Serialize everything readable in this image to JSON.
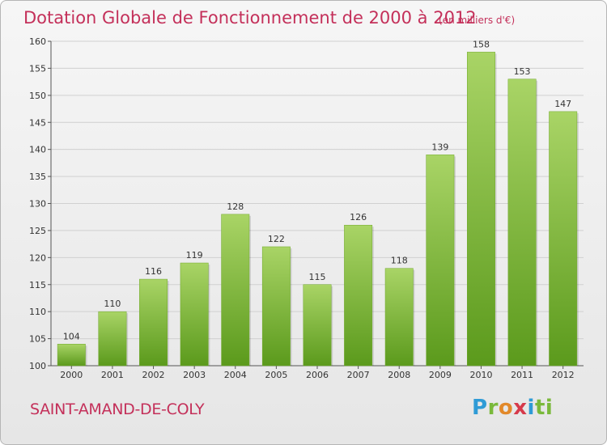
{
  "title": "Dotation Globale de Fonctionnement de 2000 à 2012",
  "unit_note": "(en milliers d'€)",
  "commune": "SAINT-AMAND-DE-COLY",
  "logo": "Proxiti",
  "colors": {
    "title": "#c4305a",
    "bar_top": "#a9d466",
    "bar_bottom": "#5b9a1c",
    "grid": "#d0d0d0"
  },
  "chart_data": {
    "type": "bar",
    "title": "Dotation Globale de Fonctionnement de 2000 à 2012",
    "xlabel": "",
    "ylabel": "",
    "categories": [
      "2000",
      "2001",
      "2002",
      "2003",
      "2004",
      "2005",
      "2006",
      "2007",
      "2008",
      "2009",
      "2010",
      "2011",
      "2012"
    ],
    "values": [
      104,
      110,
      116,
      119,
      128,
      122,
      115,
      126,
      118,
      139,
      158,
      153,
      147
    ],
    "ylim": [
      100,
      160
    ],
    "yticks": [
      100,
      105,
      110,
      115,
      120,
      125,
      130,
      135,
      140,
      145,
      150,
      155,
      160
    ],
    "grid": true,
    "legend": "none"
  }
}
